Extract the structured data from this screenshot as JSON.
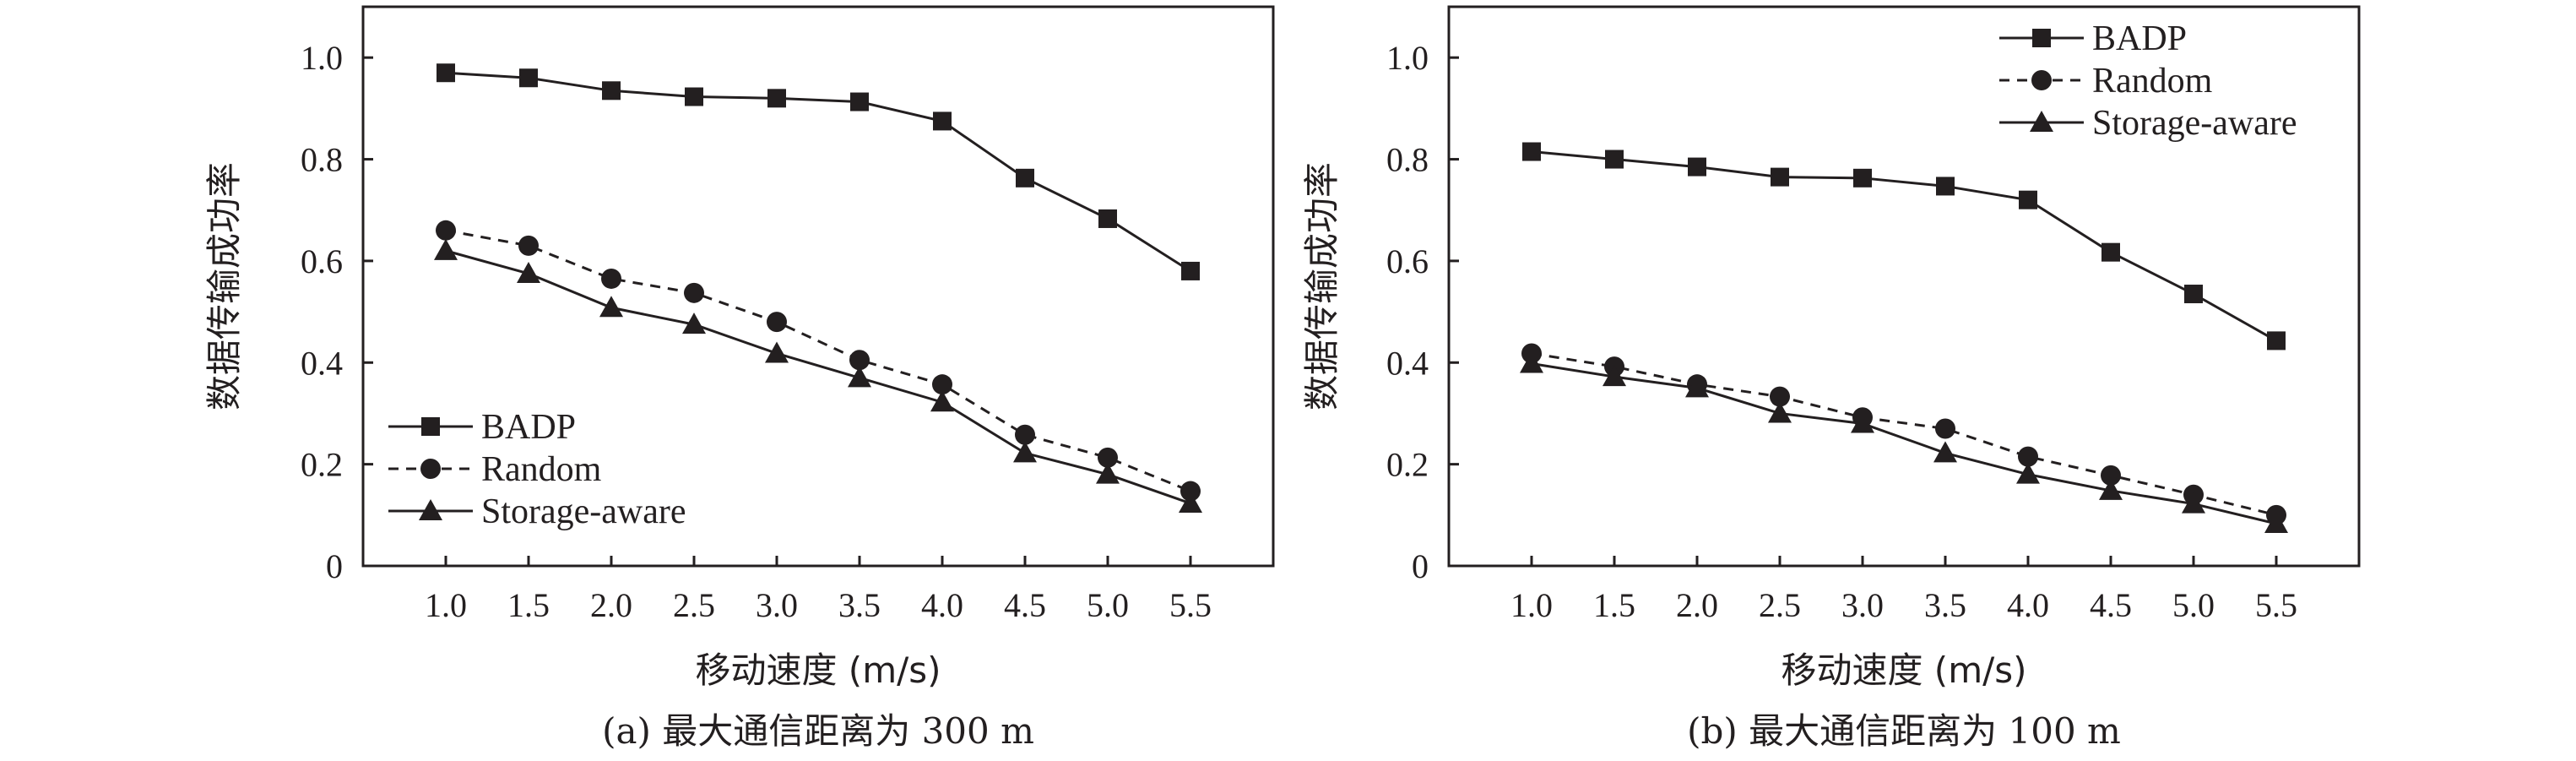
{
  "chart_data": [
    {
      "type": "line",
      "panel": "a",
      "caption": "(a) 最大通信距离为 300 m",
      "xlabel": "移动速度 (m/s)",
      "ylabel": "数据传输成功率",
      "x": [
        1.0,
        1.5,
        2.0,
        2.5,
        3.0,
        3.5,
        4.0,
        4.5,
        5.0,
        5.5
      ],
      "x_tick_labels": [
        "1.0",
        "1.5",
        "2.0",
        "2.5",
        "3.0",
        "3.5",
        "4.0",
        "4.5",
        "5.0",
        "5.5"
      ],
      "y_ticks": [
        0,
        0.2,
        0.4,
        0.6,
        0.8,
        1.0
      ],
      "y_tick_labels": [
        "0",
        "0.2",
        "0.4",
        "0.6",
        "0.8",
        "1.0"
      ],
      "xlim": [
        0.5,
        6.0
      ],
      "ylim": [
        0,
        1.1
      ],
      "grid": false,
      "legend_position": "bottom-left",
      "series": [
        {
          "name": "BADP",
          "marker": "square",
          "line": "solid",
          "values": [
            0.97,
            0.96,
            0.935,
            0.923,
            0.92,
            0.913,
            0.875,
            0.763,
            0.683,
            0.58
          ]
        },
        {
          "name": "Random",
          "marker": "circle",
          "line": "dashed",
          "values": [
            0.66,
            0.63,
            0.565,
            0.537,
            0.48,
            0.405,
            0.357,
            0.258,
            0.213,
            0.147
          ]
        },
        {
          "name": "Storage-aware",
          "marker": "triangle",
          "line": "solid",
          "values": [
            0.62,
            0.575,
            0.508,
            0.475,
            0.418,
            0.37,
            0.322,
            0.222,
            0.18,
            0.123
          ]
        }
      ]
    },
    {
      "type": "line",
      "panel": "b",
      "caption": "(b) 最大通信距离为 100 m",
      "xlabel": "移动速度 (m/s)",
      "ylabel": "数据传输成功率",
      "x": [
        1.0,
        1.5,
        2.0,
        2.5,
        3.0,
        3.5,
        4.0,
        4.5,
        5.0,
        5.5
      ],
      "x_tick_labels": [
        "1.0",
        "1.5",
        "2.0",
        "2.5",
        "3.0",
        "3.5",
        "4.0",
        "4.5",
        "5.0",
        "5.5"
      ],
      "y_ticks": [
        0,
        0.2,
        0.4,
        0.6,
        0.8,
        1.0
      ],
      "y_tick_labels": [
        "0",
        "0.2",
        "0.4",
        "0.6",
        "0.8",
        "1.0"
      ],
      "xlim": [
        0.5,
        6.0
      ],
      "ylim": [
        0,
        1.1
      ],
      "grid": false,
      "legend_position": "top-right",
      "series": [
        {
          "name": "BADP",
          "marker": "square",
          "line": "solid",
          "values": [
            0.815,
            0.8,
            0.785,
            0.765,
            0.763,
            0.747,
            0.72,
            0.617,
            0.535,
            0.443
          ]
        },
        {
          "name": "Random",
          "marker": "circle",
          "line": "dashed",
          "values": [
            0.418,
            0.392,
            0.357,
            0.333,
            0.292,
            0.27,
            0.215,
            0.178,
            0.14,
            0.1
          ]
        },
        {
          "name": "Storage-aware",
          "marker": "triangle",
          "line": "solid",
          "values": [
            0.398,
            0.372,
            0.35,
            0.3,
            0.28,
            0.222,
            0.18,
            0.148,
            0.122,
            0.083
          ]
        }
      ]
    }
  ],
  "colors": {
    "ink": "#231f20",
    "background": "#ffffff"
  }
}
